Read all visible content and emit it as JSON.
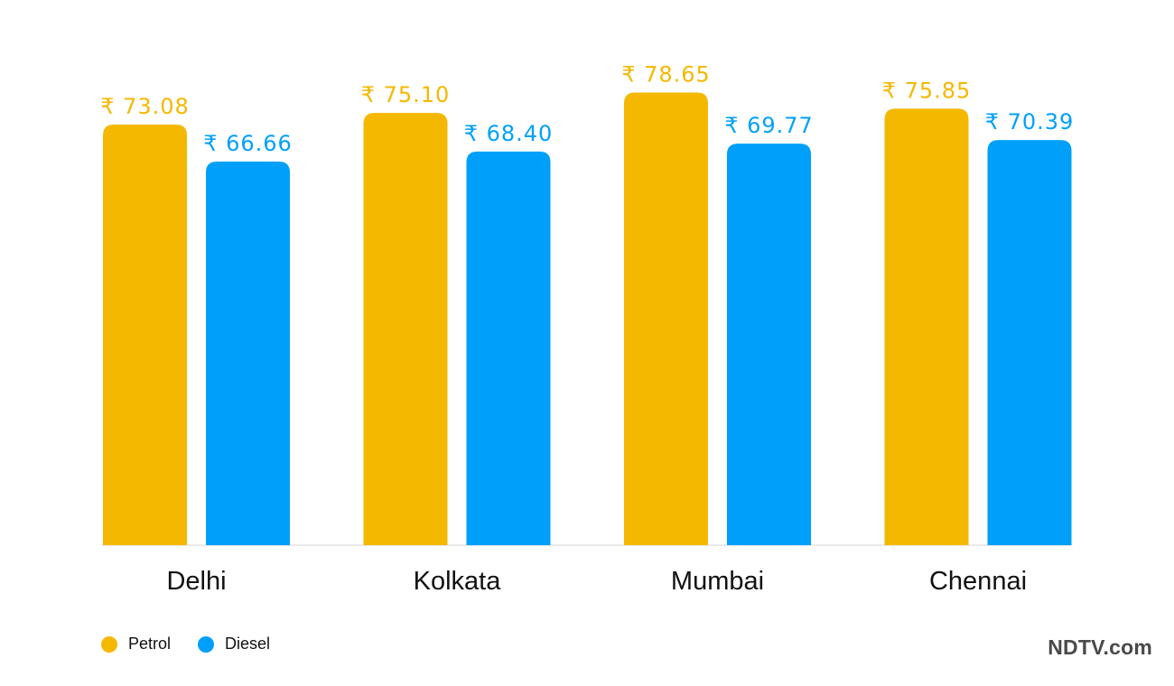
{
  "chart_data": {
    "type": "bar",
    "categories": [
      "Delhi",
      "Kolkata",
      "Mumbai",
      "Chennai"
    ],
    "series": [
      {
        "name": "Petrol",
        "values": [
          73.08,
          75.1,
          78.65,
          75.85
        ],
        "color": "#F5B800"
      },
      {
        "name": "Diesel",
        "values": [
          66.66,
          68.4,
          69.77,
          70.39
        ],
        "color": "#00A0FA"
      }
    ],
    "value_prefix": "₹ ",
    "title": "",
    "xlabel": "",
    "ylabel": "",
    "ylim": [
      0,
      80
    ],
    "grid": false,
    "legend_position": "bottom-left"
  },
  "brand": {
    "text": "NDTV.com"
  }
}
